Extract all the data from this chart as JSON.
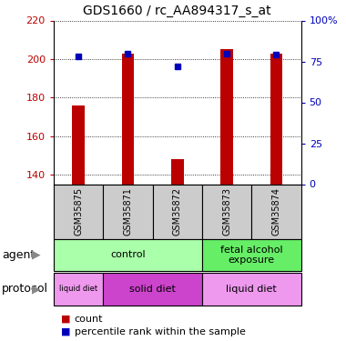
{
  "title": "GDS1660 / rc_AA894317_s_at",
  "samples": [
    "GSM35875",
    "GSM35871",
    "GSM35872",
    "GSM35873",
    "GSM35874"
  ],
  "counts": [
    176,
    203,
    148,
    205,
    203
  ],
  "percentile_ranks": [
    78,
    80,
    72,
    80,
    79
  ],
  "ylim_left": [
    135,
    220
  ],
  "ylim_right": [
    0,
    100
  ],
  "yticks_left": [
    140,
    160,
    180,
    200,
    220
  ],
  "yticks_right": [
    0,
    25,
    50,
    75,
    100
  ],
  "ytick_labels_right": [
    "0",
    "25",
    "50",
    "75",
    "100%"
  ],
  "bar_color": "#bb0000",
  "dot_color": "#0000bb",
  "agent_labels": [
    {
      "text": "control",
      "start": 0,
      "end": 2,
      "color": "#aaffaa"
    },
    {
      "text": "fetal alcohol\nexposure",
      "start": 3,
      "end": 4,
      "color": "#66ee66"
    }
  ],
  "protocol_labels": [
    {
      "text": "liquid diet",
      "start": 0,
      "end": 0,
      "color": "#ee99ee"
    },
    {
      "text": "solid diet",
      "start": 1,
      "end": 2,
      "color": "#cc44cc"
    },
    {
      "text": "liquid diet",
      "start": 3,
      "end": 4,
      "color": "#ee99ee"
    }
  ],
  "sample_bg_color": "#cccccc",
  "legend_count_color": "#bb0000",
  "legend_dot_color": "#0000bb",
  "bar_width": 0.25,
  "dot_size": 5
}
